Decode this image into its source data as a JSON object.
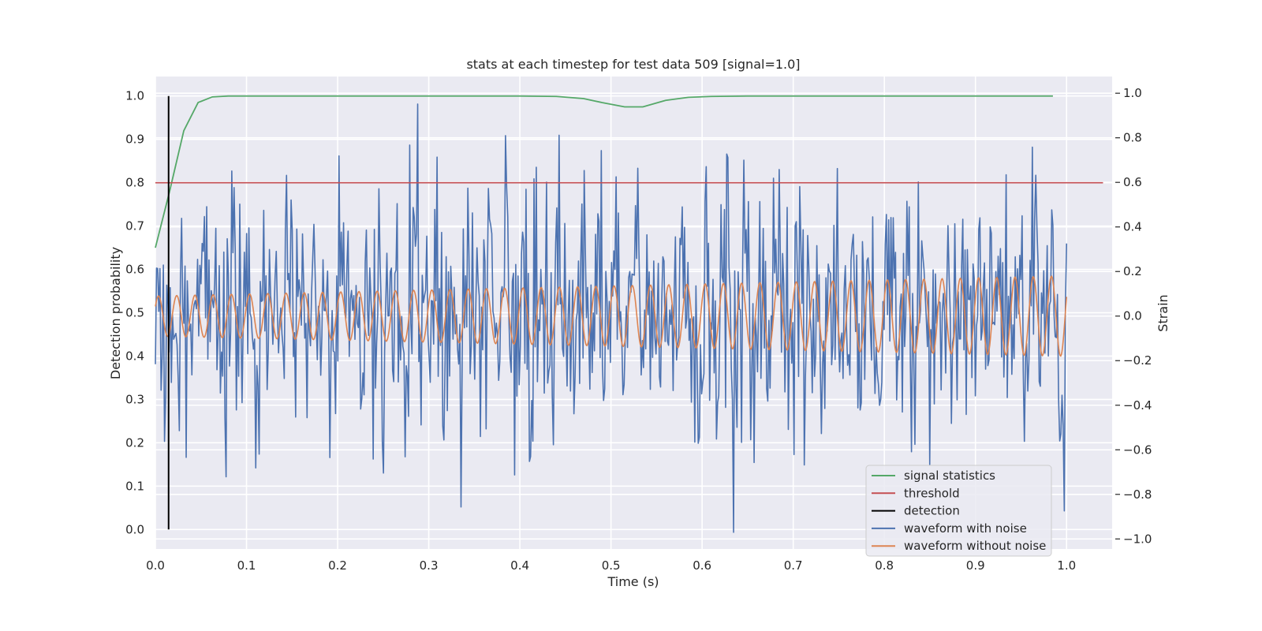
{
  "chart_data": {
    "type": "line",
    "title": "stats at each timestep for test data 509 [signal=1.0]",
    "xlabel": "Time (s)",
    "ylabel": "Detection probability",
    "ylabel_right": "Strain",
    "xlim": [
      0.0,
      1.05
    ],
    "ylim": [
      -0.045,
      1.045
    ],
    "ylim_right": [
      -1.045,
      1.075
    ],
    "xticks": [
      "0.0",
      "0.1",
      "0.2",
      "0.3",
      "0.4",
      "0.5",
      "0.6",
      "0.7",
      "0.8",
      "0.9",
      "1.0"
    ],
    "yticks": [
      "0.0",
      "0.1",
      "0.2",
      "0.3",
      "0.4",
      "0.5",
      "0.6",
      "0.7",
      "0.8",
      "0.9",
      "1.0"
    ],
    "yticks_right": [
      "−1.0",
      "−0.8",
      "−0.6",
      "−0.4",
      "−0.2",
      "0.0",
      "0.2",
      "0.4",
      "0.6",
      "0.8",
      "1.0"
    ],
    "grid": true,
    "legend_placement": "lower-right",
    "series": [
      {
        "name": "signal statistics",
        "color": "#55a868",
        "axis": "left",
        "x": [
          0.0,
          0.0156,
          0.0312,
          0.0469,
          0.0625,
          0.08,
          0.1,
          0.2,
          0.3,
          0.4,
          0.44,
          0.47,
          0.49,
          0.515,
          0.535,
          0.56,
          0.585,
          0.61,
          0.65,
          0.8,
          0.985
        ],
        "y": [
          0.65,
          0.78,
          0.92,
          0.985,
          0.998,
          1.0,
          1.0,
          1.0,
          1.0,
          1.0,
          0.999,
          0.994,
          0.985,
          0.975,
          0.975,
          0.99,
          0.997,
          0.999,
          1.0,
          1.0,
          1.0
        ]
      },
      {
        "name": "threshold",
        "color": "#c44e52",
        "axis": "left",
        "x": [
          0.0,
          1.04
        ],
        "y": [
          0.8,
          0.8
        ]
      },
      {
        "name": "detection",
        "color": "#000000",
        "axis": "left",
        "x": [
          0.0145,
          0.0145
        ],
        "y": [
          0.0,
          1.0
        ]
      },
      {
        "name": "waveform with noise",
        "color": "#4c72b0",
        "axis": "right",
        "duration": 1.0,
        "samples": 800,
        "amplitude_std": 0.3,
        "min": -0.97,
        "max": 1.0
      },
      {
        "name": "waveform without noise",
        "color": "#dd8452",
        "axis": "right",
        "duration": 1.0,
        "cycles": 50,
        "amplitude_start": 0.09,
        "amplitude_end": 0.18
      }
    ]
  }
}
